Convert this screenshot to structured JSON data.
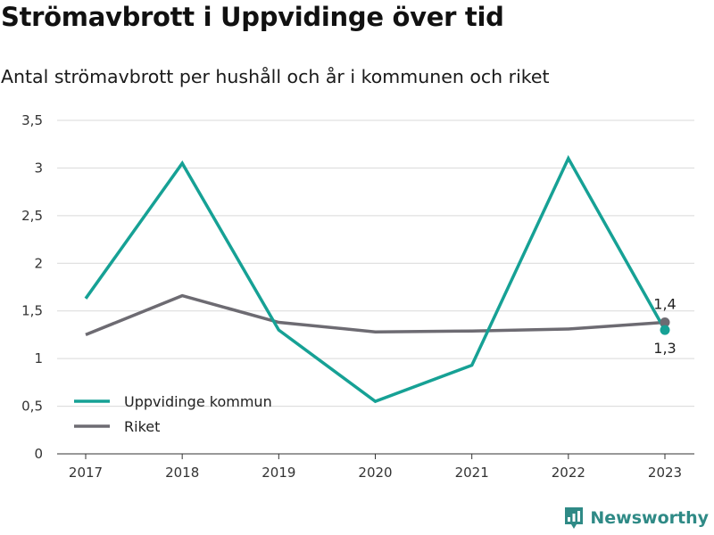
{
  "title": "Strömavbrott i Uppvidinge över tid",
  "subtitle": "Antal strömavbrott per hushåll och år i kommunen och riket",
  "brand": "Newsworthy",
  "colors": {
    "series1": "#16a195",
    "series2": "#6d6b72",
    "grid": "#d9d9d9",
    "axis": "#333333"
  },
  "chart_data": {
    "type": "line",
    "x": [
      "2017",
      "2018",
      "2019",
      "2020",
      "2021",
      "2022",
      "2023"
    ],
    "ylim": [
      0,
      3.5
    ],
    "yticks": [
      "0",
      "0,5",
      "1",
      "1,5",
      "2",
      "2,5",
      "3",
      "3,5"
    ],
    "grid": true,
    "legend_position": "bottom-left",
    "series": [
      {
        "name": "Uppvidinge kommun",
        "values": [
          1.63,
          3.05,
          1.3,
          0.55,
          0.93,
          3.1,
          1.3
        ],
        "end_label": "1,3"
      },
      {
        "name": "Riket",
        "values": [
          1.25,
          1.66,
          1.38,
          1.28,
          1.29,
          1.31,
          1.38
        ],
        "end_label": "1,4"
      }
    ]
  }
}
